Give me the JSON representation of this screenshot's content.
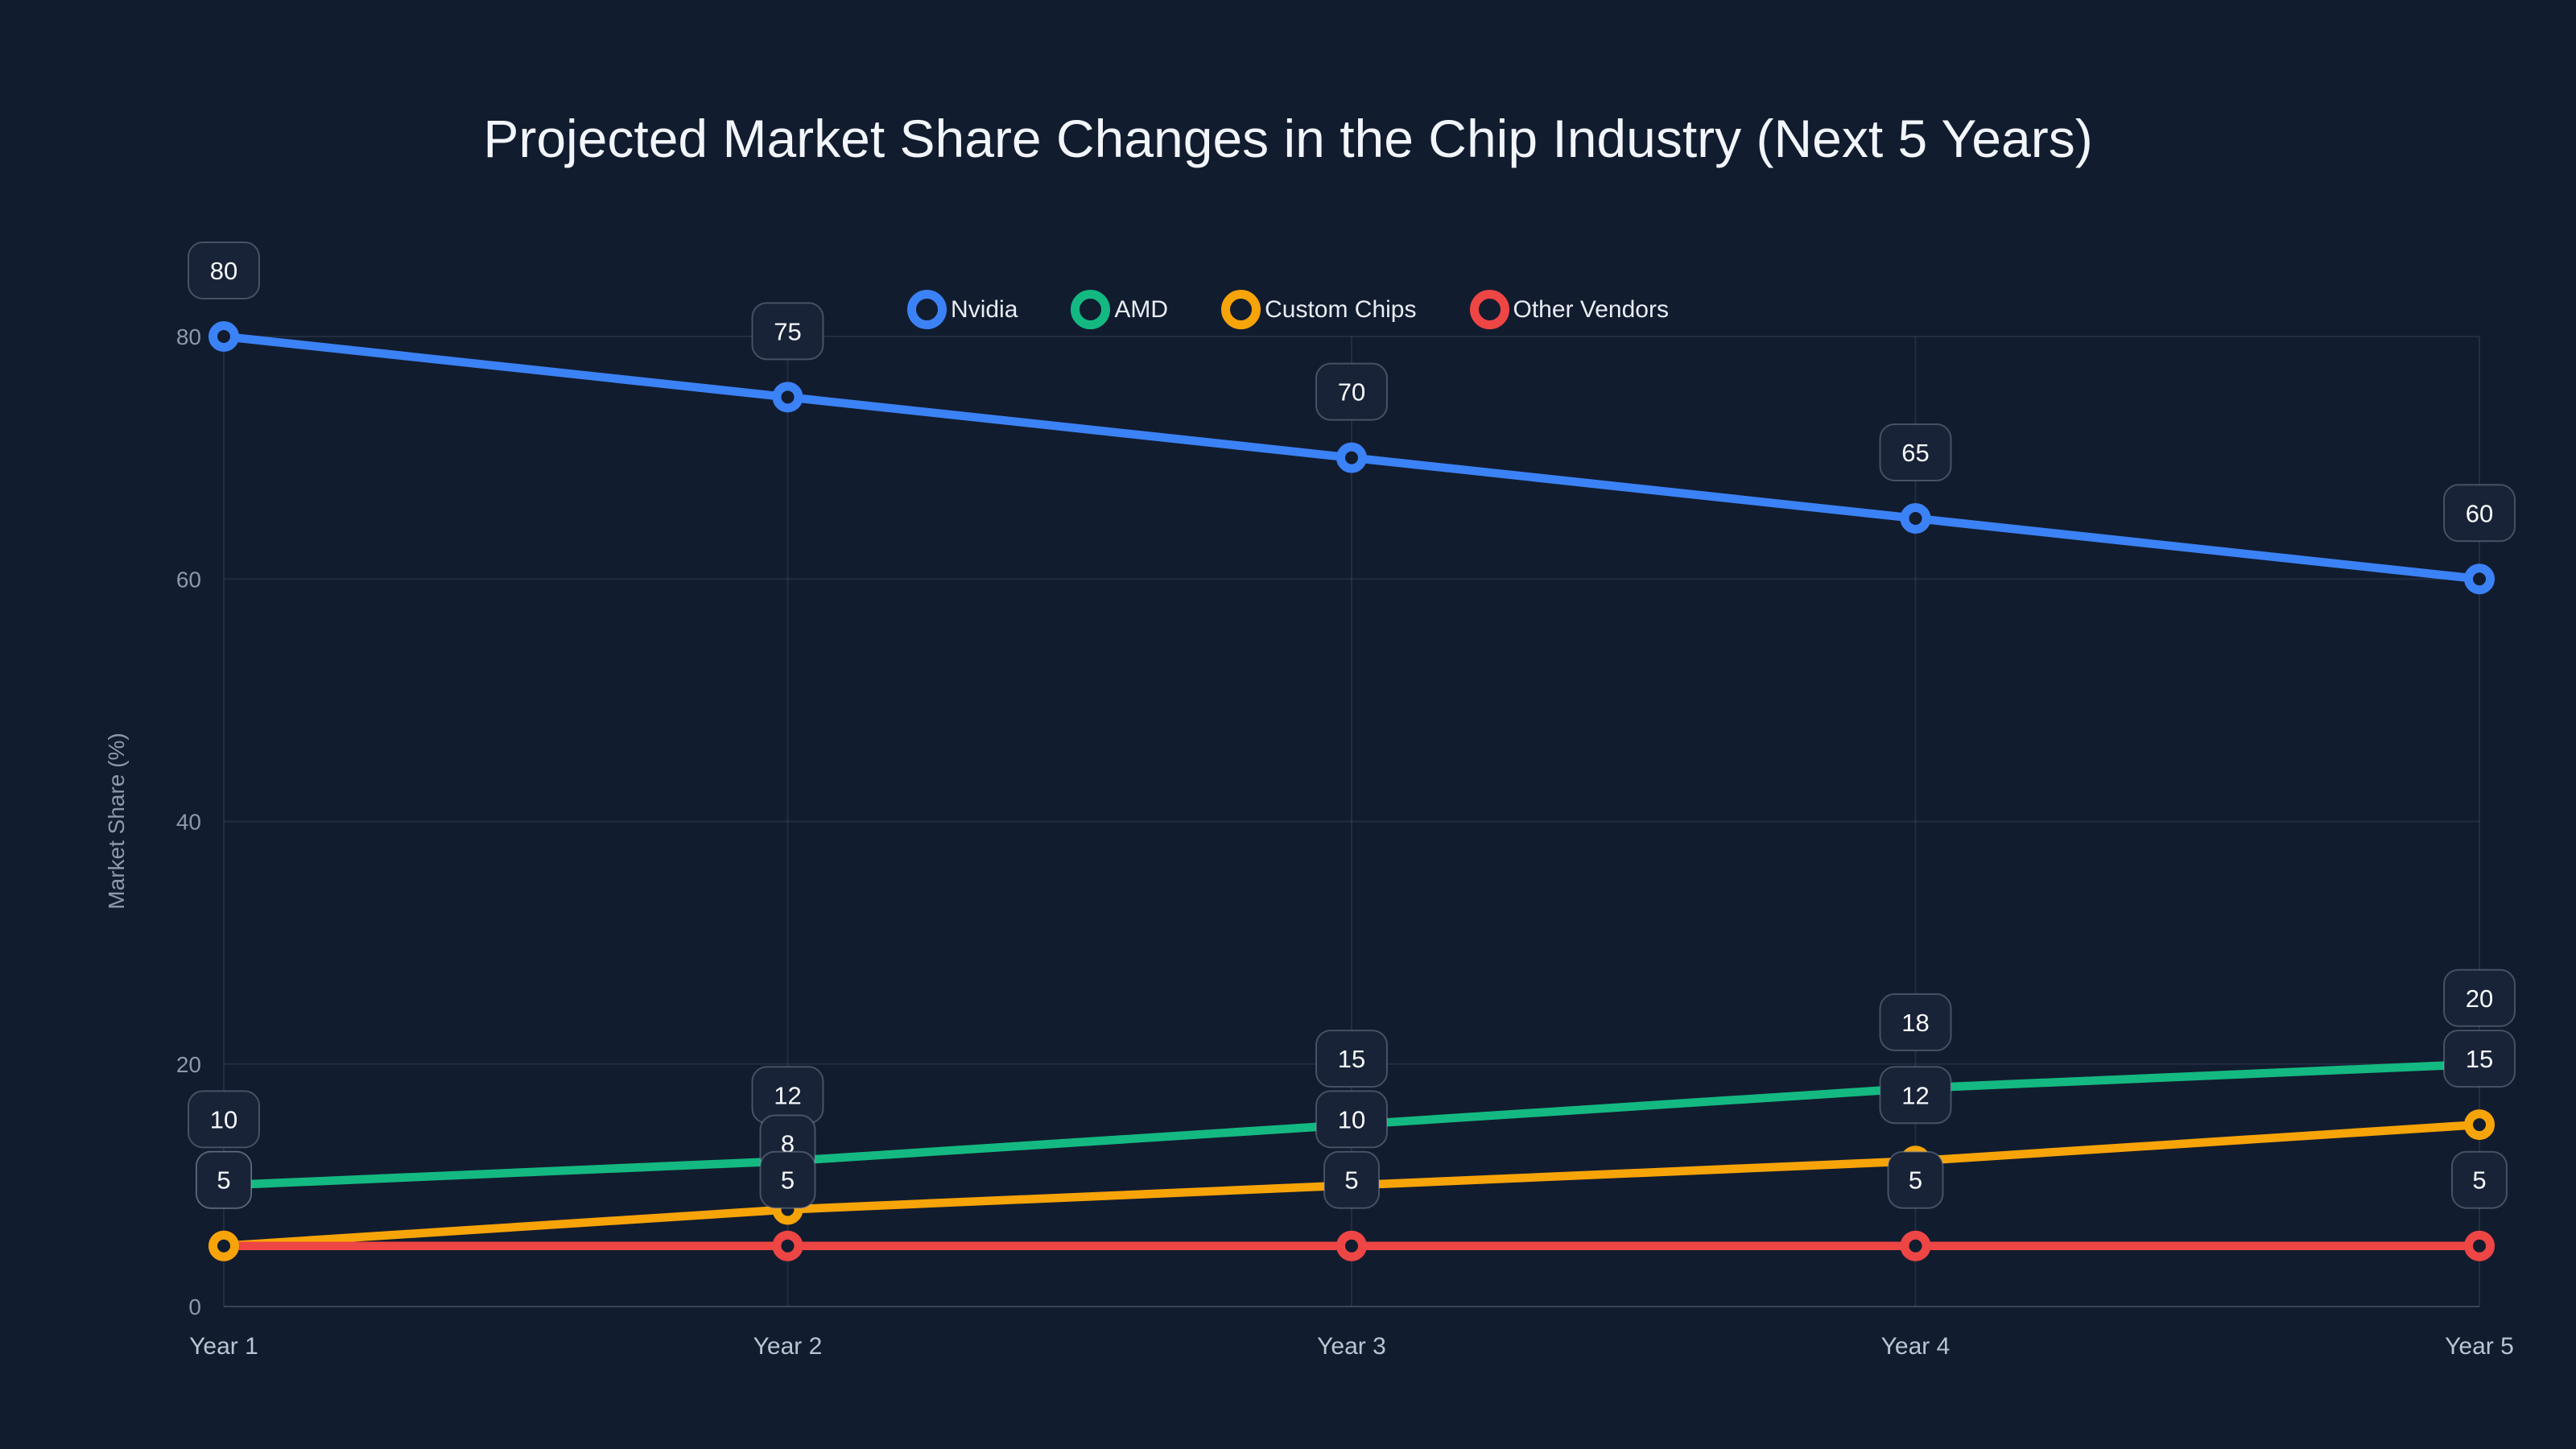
{
  "title": "Projected Market Share Changes in the Chip Industry (Next 5 Years)",
  "chart_data": {
    "type": "line",
    "categories": [
      "Year 1",
      "Year 2",
      "Year 3",
      "Year 4",
      "Year 5"
    ],
    "series": [
      {
        "name": "Nvidia",
        "color": "#3b82f6",
        "values": [
          80,
          75,
          70,
          65,
          60
        ]
      },
      {
        "name": "AMD",
        "color": "#14b981",
        "values": [
          10,
          12,
          15,
          18,
          20
        ]
      },
      {
        "name": "Custom Chips",
        "color": "#f7a408",
        "values": [
          5,
          8,
          10,
          12,
          15
        ]
      },
      {
        "name": "Other Vendors",
        "color": "#ee4545",
        "values": [
          5,
          5,
          5,
          5,
          5
        ]
      }
    ],
    "title": "Projected Market Share Changes in the Chip Industry (Next 5 Years)",
    "xlabel": "",
    "ylabel": "Market Share (%)",
    "yticks": [
      0,
      20,
      40,
      60,
      80
    ],
    "ylim": [
      0,
      86
    ],
    "grid": true,
    "legend_position": "top-center",
    "point_labels": true,
    "marker_style": "open-ring"
  },
  "colors": {
    "background": "#121c2f",
    "grid": "rgba(148,163,184,0.13)",
    "axis_line": "rgba(148,163,184,0.30)",
    "y_tick_text": "#8d98ab",
    "x_tick_text": "#bac4d2",
    "title_text": "#f2f5fa",
    "legend_text": "#e9edf4",
    "badge_fill": "#192337",
    "badge_border": "rgba(151,163,186,0.38)",
    "badge_text": "#f8fafd"
  }
}
